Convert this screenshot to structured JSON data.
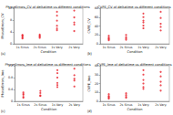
{
  "chart_data": [
    {
      "type": "scatter",
      "title": "PhaseErrors_CV of deltatime vs different conditions",
      "annotation": "(a)",
      "x_label": "Condition",
      "y_label": "PhaseErrors_CV",
      "categories": [
        "1s Sinus",
        "2s Sinus",
        "1s Vary",
        "2s Vary"
      ],
      "series": [
        {
          "color": "#e8202a",
          "marker": "circle",
          "x": [
            "1s Sinus",
            "1s Sinus",
            "1s Sinus",
            "1s Sinus",
            "1s Sinus",
            "2s Sinus",
            "2s Sinus",
            "2s Sinus",
            "2s Sinus",
            "1s Vary",
            "1s Vary",
            "1s Vary",
            "1s Vary",
            "1s Vary",
            "1s Vary",
            "2s Vary",
            "2s Vary",
            "2s Vary",
            "2s Vary",
            "2s Vary"
          ],
          "values": [
            2.1,
            2.5,
            3.0,
            1.8,
            2.8,
            2.4,
            3.1,
            2.0,
            2.7,
            5.2,
            7.8,
            9.5,
            6.1,
            10.8,
            4.6,
            4.3,
            6.5,
            8.9,
            7.2,
            11.2
          ]
        }
      ],
      "ylim": [
        0,
        12
      ],
      "yticks": [
        0,
        4,
        8,
        12
      ],
      "grid": false
    },
    {
      "type": "scatter",
      "title": "CVPE_CV of deltatime vs different conditions",
      "annotation": "(b)",
      "x_label": "Condition",
      "y_label": "CVPE_CV",
      "categories": [
        "1s Sinus",
        "2s Sinus",
        "1s Vary",
        "2s Vary"
      ],
      "series": [
        {
          "color": "#e8202a",
          "marker": "circle",
          "x": [
            "1s Sinus",
            "1s Sinus",
            "1s Sinus",
            "1s Sinus",
            "1s Sinus",
            "2s Sinus",
            "2s Sinus",
            "2s Sinus",
            "2s Sinus",
            "1s Vary",
            "1s Vary",
            "1s Vary",
            "1s Vary",
            "1s Vary",
            "1s Vary",
            "2s Vary",
            "2s Vary",
            "2s Vary",
            "2s Vary",
            "2s Vary"
          ],
          "values": [
            10,
            14,
            18,
            8,
            12,
            12,
            20,
            15,
            9,
            35,
            52,
            48,
            60,
            41,
            68,
            30,
            45,
            58,
            72,
            38
          ]
        }
      ],
      "ylim": [
        0,
        80
      ],
      "yticks": [
        0,
        20,
        40,
        60,
        80
      ],
      "grid": false
    },
    {
      "type": "scatter",
      "title": "PhaseErrors_lme of deltatime vs different conditions",
      "annotation": "(c)",
      "x_label": "Condition",
      "y_label": "PhaseErrors_lme",
      "categories": [
        "1s Sinus",
        "2s Sinus",
        "1s Vary",
        "2s Vary"
      ],
      "series": [
        {
          "color": "#e8202a",
          "marker": "circle",
          "x": [
            "1s Sinus",
            "1s Sinus",
            "1s Sinus",
            "1s Sinus",
            "1s Sinus",
            "2s Sinus",
            "2s Sinus",
            "2s Sinus",
            "2s Sinus",
            "1s Vary",
            "1s Vary",
            "1s Vary",
            "1s Vary",
            "1s Vary",
            "1s Vary",
            "2s Vary",
            "2s Vary",
            "2s Vary",
            "2s Vary",
            "2s Vary"
          ],
          "values": [
            0.15,
            0.22,
            0.3,
            0.12,
            0.25,
            0.2,
            0.35,
            0.18,
            0.28,
            0.55,
            0.8,
            0.95,
            0.62,
            1.05,
            0.48,
            0.5,
            0.7,
            0.88,
            0.76,
            1.1
          ]
        }
      ],
      "ylim": [
        0,
        1.2
      ],
      "yticks": [
        0,
        0.4,
        0.8,
        1.2
      ],
      "grid": false
    },
    {
      "type": "scatter",
      "title": "CVPE_lme of deltatime vs different conditions",
      "annotation": "(d)",
      "x_label": "Condition",
      "y_label": "CVPE_lme",
      "categories": [
        "1s Sinus",
        "2s Sinus",
        "1s Vary",
        "2s Vary"
      ],
      "series": [
        {
          "color": "#e8202a",
          "marker": "circle",
          "x": [
            "1s Sinus",
            "1s Sinus",
            "1s Sinus",
            "1s Sinus",
            "1s Sinus",
            "2s Sinus",
            "2s Sinus",
            "2s Sinus",
            "2s Sinus",
            "1s Vary",
            "1s Vary",
            "1s Vary",
            "1s Vary",
            "1s Vary",
            "1s Vary",
            "2s Vary",
            "2s Vary",
            "2s Vary",
            "2s Vary",
            "2s Vary"
          ],
          "values": [
            4,
            6,
            8,
            3,
            5,
            5,
            9,
            7,
            4,
            16,
            24,
            30,
            20,
            35,
            14,
            12,
            22,
            28,
            33,
            18
          ]
        }
      ],
      "ylim": [
        0,
        40
      ],
      "yticks": [
        0,
        10,
        20,
        30,
        40
      ],
      "grid": false
    }
  ]
}
